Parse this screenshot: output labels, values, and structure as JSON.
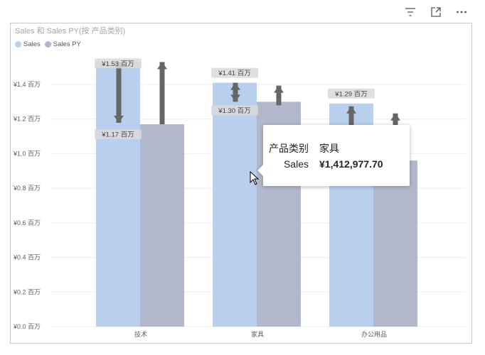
{
  "toolbar": {
    "icons": [
      "filter-icon",
      "focus-mode-icon",
      "more-options-icon"
    ]
  },
  "chart_data": {
    "type": "bar",
    "title": "Sales 和 Sales PY(按 产品类别)",
    "categories": [
      "技术",
      "家具",
      "办公用品"
    ],
    "series": [
      {
        "name": "Sales",
        "values": [
          1.53,
          1.41,
          1.29
        ],
        "color": "#b8d0ee"
      },
      {
        "name": "Sales PY",
        "values": [
          1.17,
          1.3,
          0.96
        ],
        "color": "#b3b7cc"
      }
    ],
    "data_labels": [
      "¥1.53 百万",
      "¥1.17 百万",
      "¥1.41 百万",
      "¥1.30 百万",
      "¥1.29 百万"
    ],
    "yticks": [
      "¥0.0 百万",
      "¥0.2 百万",
      "¥0.4 百万",
      "¥0.6 百万",
      "¥0.8 百万",
      "¥1.0 百万",
      "¥1.2 百万",
      "¥1.4 百万"
    ],
    "ylim": [
      0,
      1.6
    ],
    "legend_position": "top-left",
    "grid": true
  },
  "tooltip": {
    "key1": "产品类别",
    "val1": "家具",
    "key2": "Sales",
    "val2": "¥1,412,977.70"
  }
}
